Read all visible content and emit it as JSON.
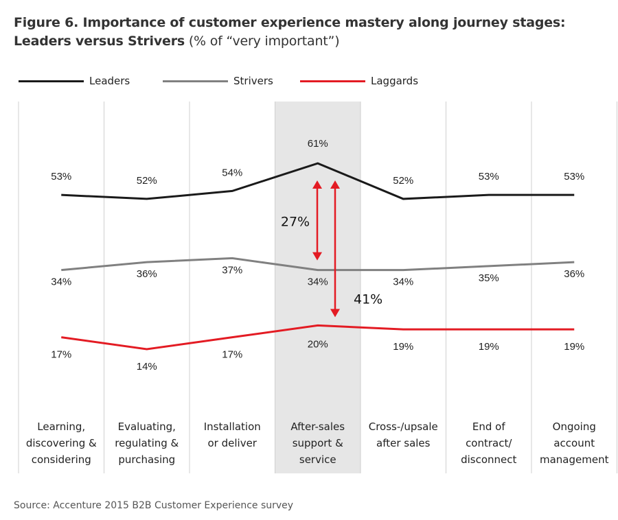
{
  "title": {
    "line1": "Figure 6. Importance of customer experience mastery along journey stages:",
    "line2_bold": "Leaders versus Strivers",
    "line2_rest": " (% of “very important”)"
  },
  "legend": [
    {
      "name": "Leaders",
      "color": "#1a1a1a"
    },
    {
      "name": "Strivers",
      "color": "#808080"
    },
    {
      "name": "Laggards",
      "color": "#e31b23"
    }
  ],
  "source": "Source: Accenture 2015 B2B Customer Experience survey",
  "chart_data": {
    "type": "line",
    "categories": [
      "Learning,\ndiscovering &\nconsidering",
      "Evaluating,\nregulating &\npurchasing",
      "Installation\nor deliver",
      "After-sales\nsupport &\nservice",
      "Cross-/upsale\nafter sales",
      "End of\ncontract/\ndisconnect",
      "Ongoing\naccount\nmanagement"
    ],
    "series": [
      {
        "name": "Leaders",
        "values": [
          53,
          52,
          54,
          61,
          52,
          53,
          53
        ],
        "color": "#1a1a1a"
      },
      {
        "name": "Strivers",
        "values": [
          34,
          36,
          37,
          34,
          34,
          35,
          36
        ],
        "color": "#808080"
      },
      {
        "name": "Laggards",
        "values": [
          17,
          14,
          17,
          20,
          19,
          19,
          19
        ],
        "color": "#e31b23"
      }
    ],
    "highlight_category_index": 3,
    "highlight_color": "#e6e6e6",
    "annotations": [
      {
        "label": "27%",
        "from_series": "Leaders",
        "to_series": "Strivers",
        "category_index": 3
      },
      {
        "label": "41%",
        "from_series": "Leaders",
        "to_series": "Laggards",
        "category_index": 3
      }
    ],
    "annotation_color": "#e31b23",
    "value_suffix": "%",
    "ylim": [
      10,
      65
    ],
    "grid": "vertical separators between categories",
    "legend_position": "top-left"
  }
}
